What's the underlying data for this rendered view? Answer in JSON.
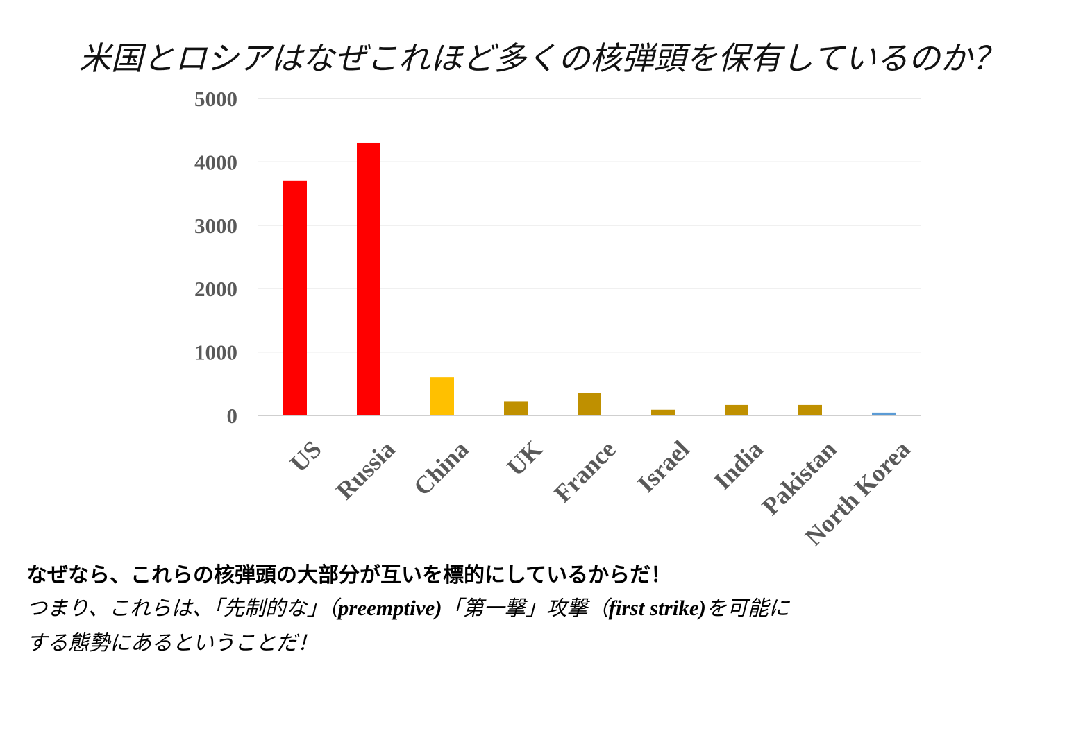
{
  "title": "米国とロシアはなぜこれほど多くの核弾頭を保有しているのか？",
  "chart_data": {
    "type": "bar",
    "categories": [
      "US",
      "Russia",
      "China",
      "UK",
      "France",
      "Israel",
      "India",
      "Pakistan",
      "North Korea"
    ],
    "values": [
      3700,
      4300,
      600,
      225,
      360,
      90,
      165,
      165,
      45
    ],
    "colors": [
      "#FF0000",
      "#FF0000",
      "#FFC000",
      "#BF9000",
      "#BF9000",
      "#BF9000",
      "#BF9000",
      "#BF9000",
      "#5B9BD5"
    ],
    "ylim": [
      0,
      5000
    ],
    "yticks": [
      "0",
      "1000",
      "2000",
      "3000",
      "4000",
      "5000"
    ],
    "grid": true,
    "legend": "none",
    "xlabel": "",
    "ylabel": ""
  },
  "caption": {
    "line1": "なぜなら、これらの核弾頭の大部分が互いを標的にしているからだ！",
    "line2_part1": "つまり、これらは、「先制的な」（",
    "line2_en1": "preemptive)",
    "line2_part2": "「第一撃」攻撃（",
    "line2_en2": "first strike)",
    "line2_part3": "を可能に",
    "line3": "する態勢にあるということだ！"
  }
}
